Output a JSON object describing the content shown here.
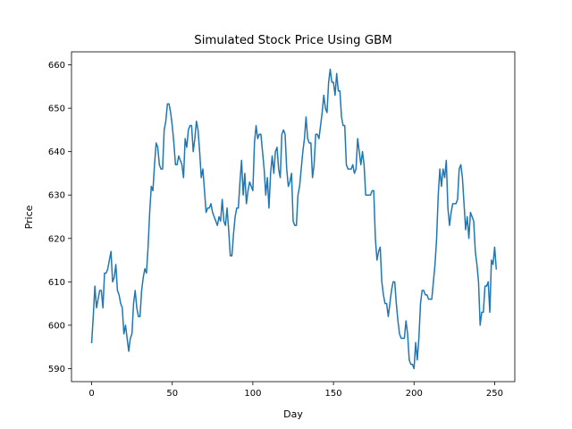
{
  "chart_data": {
    "type": "line",
    "title": "Simulated Stock Price Using GBM",
    "xlabel": "Day",
    "ylabel": "Price",
    "xlim": [
      -12.5,
      262.5
    ],
    "ylim": [
      587,
      663
    ],
    "xticks": [
      0,
      50,
      100,
      150,
      200,
      250
    ],
    "yticks": [
      590,
      600,
      610,
      620,
      630,
      640,
      650,
      660
    ],
    "grid": false,
    "line_color": "#1f77b4",
    "series": [
      {
        "values": [
          596,
          602,
          609,
          604,
          606,
          608,
          608,
          604,
          612,
          612,
          613,
          615,
          617,
          610,
          611,
          614,
          608,
          607,
          605,
          604,
          598,
          600,
          597,
          594,
          597,
          598,
          605,
          608,
          604,
          602,
          602,
          608,
          611,
          613,
          612,
          618,
          626,
          632,
          631,
          637,
          642,
          641,
          637,
          636,
          636,
          645,
          647,
          651,
          651,
          649,
          646,
          642,
          637,
          637,
          639,
          638,
          637,
          634,
          643,
          641,
          645,
          646,
          646,
          640,
          643,
          647,
          645,
          640,
          634,
          636,
          631,
          626,
          627,
          627,
          628,
          626,
          625,
          624,
          623,
          625,
          624,
          629,
          624,
          623,
          627,
          622,
          616,
          616,
          621,
          625,
          627,
          627,
          633,
          638,
          630,
          635,
          628,
          631,
          633,
          632,
          631,
          642,
          646,
          643,
          644,
          644,
          640,
          636,
          630,
          634,
          627,
          635,
          639,
          635,
          640,
          641,
          636,
          634,
          644,
          645,
          644,
          636,
          632,
          633,
          635,
          624,
          623,
          623,
          630,
          632,
          636,
          640,
          643,
          648,
          643,
          642,
          642,
          634,
          637,
          644,
          644,
          643,
          646,
          649,
          653,
          650,
          649,
          656,
          659,
          656,
          656,
          653,
          658,
          654,
          654,
          648,
          646,
          646,
          637,
          636,
          636,
          636,
          637,
          635,
          636,
          643,
          640,
          637,
          640,
          637,
          630,
          630,
          630,
          630,
          631,
          631,
          620,
          615,
          617,
          618,
          610,
          607,
          605,
          605,
          602,
          605,
          608,
          610,
          610,
          605,
          601,
          598,
          597,
          597,
          597,
          601,
          598,
          592,
          591,
          591,
          590,
          596,
          592,
          597,
          605,
          608,
          608,
          607,
          607,
          606,
          606,
          606,
          610,
          614,
          620,
          630,
          636,
          632,
          636,
          634,
          638,
          627,
          623,
          626,
          628,
          628,
          628,
          629,
          636,
          637,
          634,
          628,
          622,
          625,
          620,
          626,
          625,
          624,
          617,
          614,
          610,
          600,
          603,
          603,
          609,
          609,
          610,
          603,
          615,
          614,
          618,
          613
        ]
      }
    ]
  }
}
